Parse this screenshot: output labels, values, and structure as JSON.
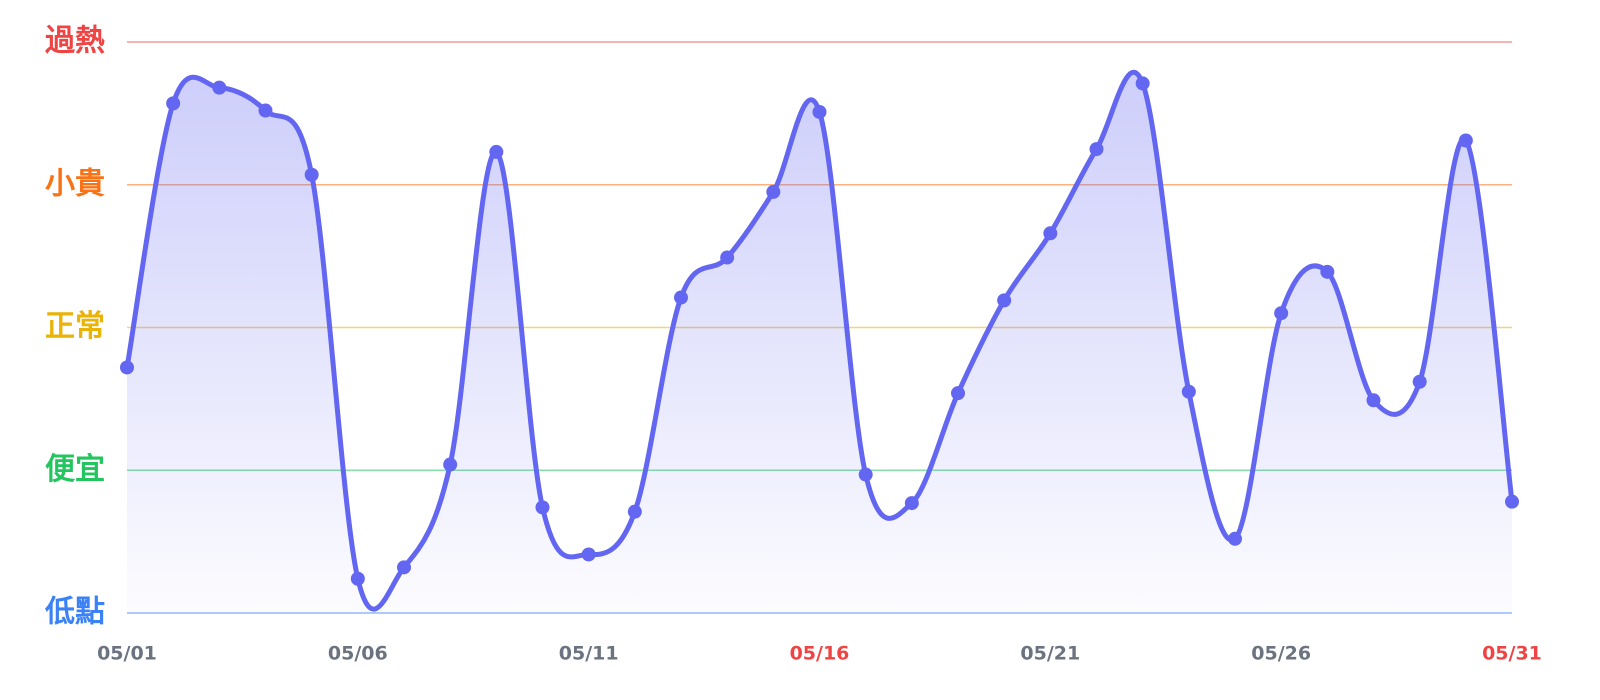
{
  "chart_data": {
    "type": "line",
    "categories": [
      "05/01",
      null,
      null,
      null,
      null,
      "05/06",
      null,
      null,
      null,
      null,
      "05/11",
      null,
      null,
      null,
      null,
      "05/16",
      null,
      null,
      null,
      null,
      "05/21",
      null,
      null,
      null,
      null,
      "05/26",
      null,
      null,
      null,
      null,
      "05/31"
    ],
    "series": [
      {
        "color": "#6366f1",
        "values": [
          1.72,
          3.57,
          3.68,
          3.52,
          3.07,
          0.24,
          0.32,
          1.04,
          3.23,
          0.74,
          0.41,
          0.71,
          2.21,
          2.49,
          2.95,
          3.51,
          0.97,
          0.77,
          1.54,
          2.19,
          2.66,
          3.25,
          3.71,
          1.55,
          0.52,
          2.1,
          2.39,
          1.49,
          1.62,
          3.31,
          0.78
        ]
      }
    ],
    "ylim": [
      0,
      4
    ],
    "yticks": [
      {
        "value": 0,
        "label": "低點",
        "color": "#3b82f6"
      },
      {
        "value": 1,
        "label": "便宜",
        "color": "#22c55e"
      },
      {
        "value": 2,
        "label": "正常",
        "color": "#eab308"
      },
      {
        "value": 3,
        "label": "小貴",
        "color": "#f97316"
      },
      {
        "value": 4,
        "label": "過熱",
        "color": "#ef4444"
      }
    ],
    "grid": true,
    "x_label_color": "#6b7280",
    "highlight_color": "#ef4444",
    "highlight_indices": [
      15,
      30
    ]
  }
}
